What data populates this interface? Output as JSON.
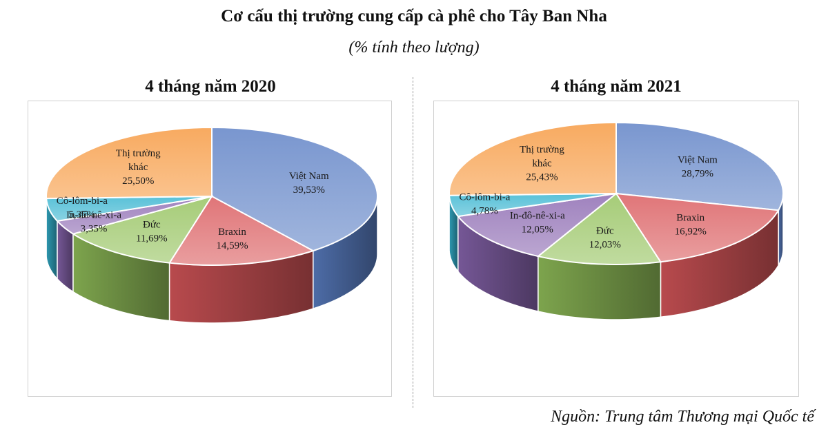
{
  "title": "Cơ cấu thị trường cung cấp cà phê cho Tây Ban Nha",
  "subtitle": "(% tính theo lượng)",
  "source": "Nguồn: Trung tâm Thương mại Quốc tế",
  "chart_data": [
    {
      "type": "pie",
      "title": "4 tháng năm 2020",
      "unit": "%",
      "slices": [
        {
          "label": "Việt Nam",
          "value": 39.53,
          "display": "39,53%",
          "color": "#5b7fc4"
        },
        {
          "label": "Braxin",
          "value": 14.59,
          "display": "14,59%",
          "color": "#d9575a"
        },
        {
          "label": "Đức",
          "value": 11.69,
          "display": "11,69%",
          "color": "#93c15a"
        },
        {
          "label": "In-đô-nê-xi-a",
          "value": 3.35,
          "display": "3,35%",
          "color": "#8a66b0"
        },
        {
          "label": "Cô-lôm-bi-a",
          "value": 5.35,
          "display": "5,35%",
          "color": "#35b3cf"
        },
        {
          "label": "Thị trường khác",
          "value": 25.5,
          "display": "25,50%",
          "color": "#f7973d"
        }
      ]
    },
    {
      "type": "pie",
      "title": "4 tháng năm 2021",
      "unit": "%",
      "slices": [
        {
          "label": "Việt Nam",
          "value": 28.79,
          "display": "28,79%",
          "color": "#5b7fc4"
        },
        {
          "label": "Braxin",
          "value": 16.92,
          "display": "16,92%",
          "color": "#d9575a"
        },
        {
          "label": "Đức",
          "value": 12.03,
          "display": "12,03%",
          "color": "#93c15a"
        },
        {
          "label": "In-đô-nê-xi-a",
          "value": 12.05,
          "display": "12,05%",
          "color": "#8a66b0"
        },
        {
          "label": "Cô-lôm-bi-a",
          "value": 4.78,
          "display": "4,78%",
          "color": "#35b3cf"
        },
        {
          "label": "Thị trường khác",
          "value": 25.43,
          "display": "25,43%",
          "color": "#f7973d"
        }
      ]
    }
  ]
}
